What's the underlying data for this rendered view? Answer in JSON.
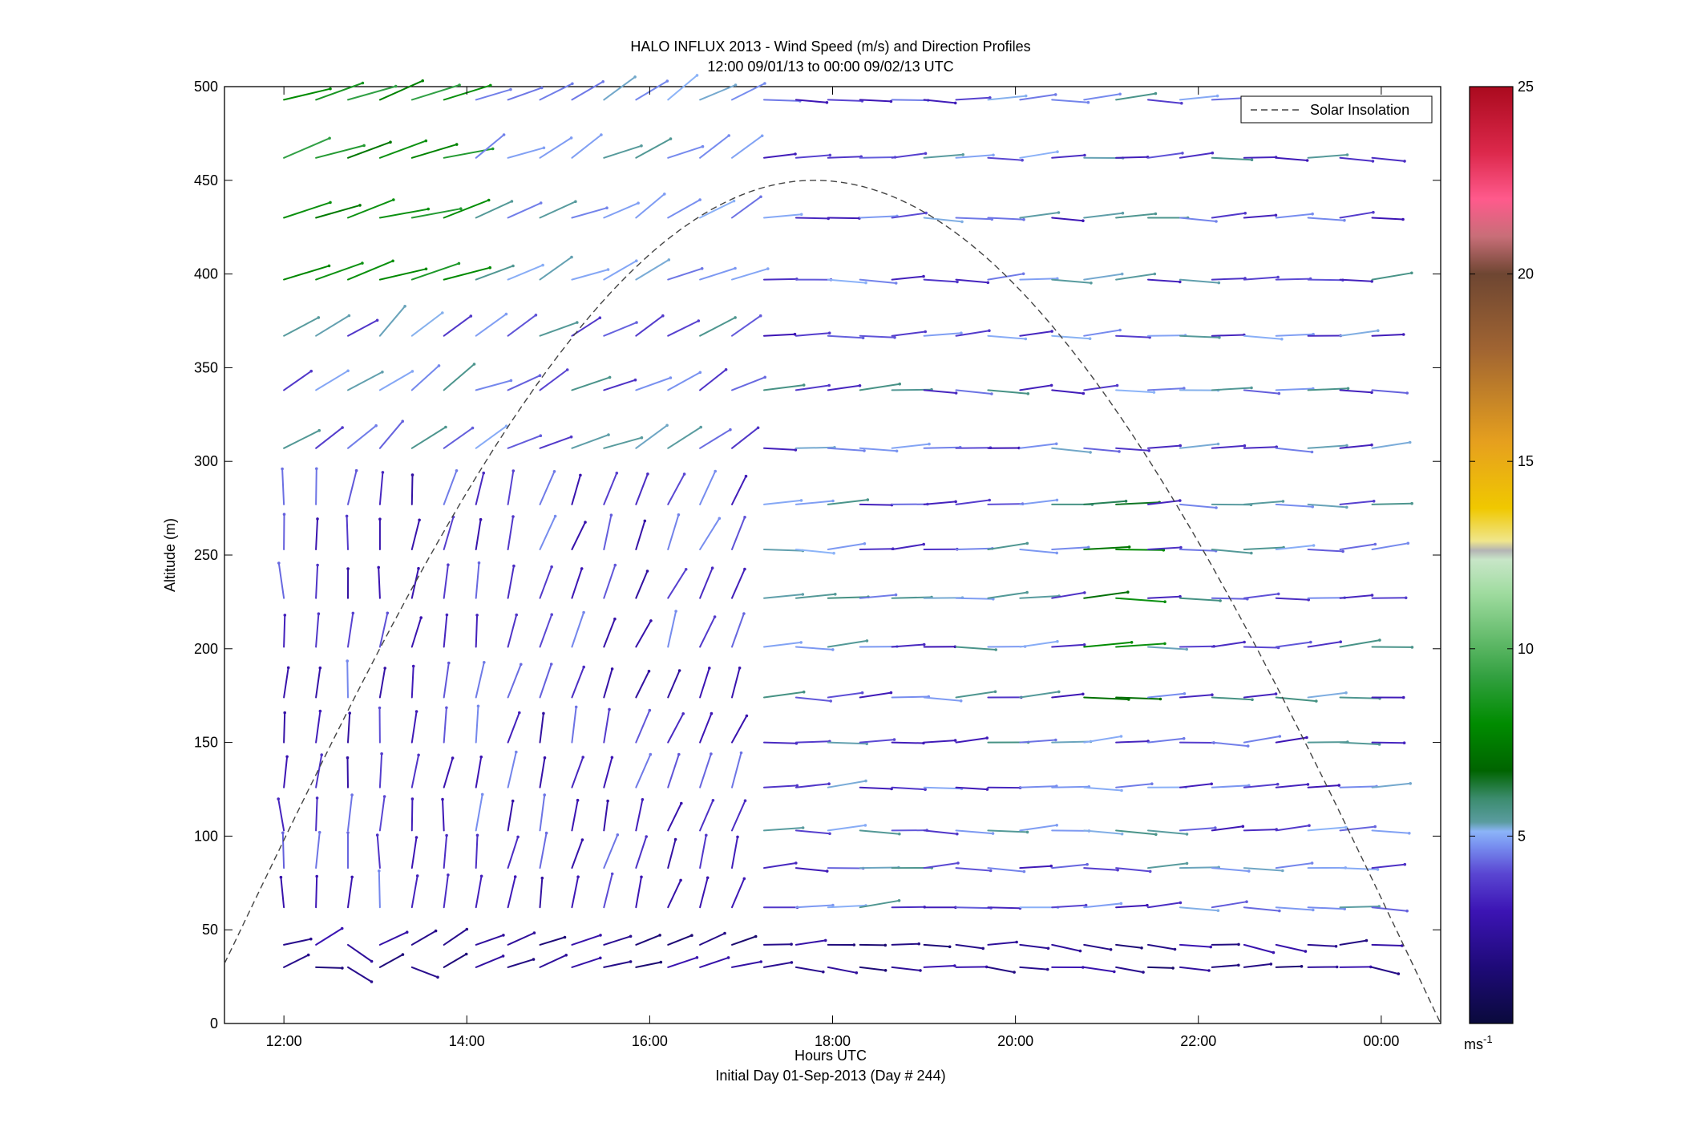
{
  "chart_data": {
    "type": "scatter",
    "title": "HALO INFLUX 2013 - Wind Speed (m/s) and Direction Profiles",
    "subtitle": "12:00 09/01/13 to 00:00 09/02/13  UTC",
    "xlabel": "Hours UTC",
    "xlabel2": "Initial Day 01-Sep-2013 (Day # 244)",
    "ylabel": "Altitude (m)",
    "x_ticks": [
      "12:00",
      "14:00",
      "16:00",
      "18:00",
      "20:00",
      "22:00",
      "00:00"
    ],
    "x_tick_hours": [
      12,
      14,
      16,
      18,
      20,
      22,
      24
    ],
    "xlim_hours": [
      11.35,
      24.65
    ],
    "y_ticks": [
      "0",
      "50",
      "100",
      "150",
      "200",
      "250",
      "300",
      "350",
      "400",
      "450",
      "500"
    ],
    "ylim": [
      0,
      500
    ],
    "grid": false,
    "legend": {
      "position": "top-right",
      "entries": [
        "Solar Insolation"
      ]
    },
    "colorbar": {
      "label": "ms-1",
      "label_base": "ms",
      "label_exp": "-1",
      "ticks": [
        "5",
        "10",
        "15",
        "20",
        "25"
      ],
      "range": [
        0,
        25
      ]
    },
    "solar_insolation": {
      "start": [
        11.35,
        32
      ],
      "peak": [
        17.8,
        450
      ],
      "end": [
        24.65,
        0
      ]
    },
    "altitudes_m": [
      30,
      42,
      62,
      83,
      103,
      126,
      150,
      174,
      201,
      227,
      253,
      277,
      307,
      338,
      367,
      397,
      430,
      462,
      493
    ],
    "time_step_hours": 0.35,
    "time_start_hours": 12.0,
    "time_end_hours": 24.0,
    "wind_model": "approximate, read from barbs: vectors pointing up (northward) in the early low-level period, rotating to near-horizontal westerly flow after 17:00; speeds 1-10 m/s"
  }
}
